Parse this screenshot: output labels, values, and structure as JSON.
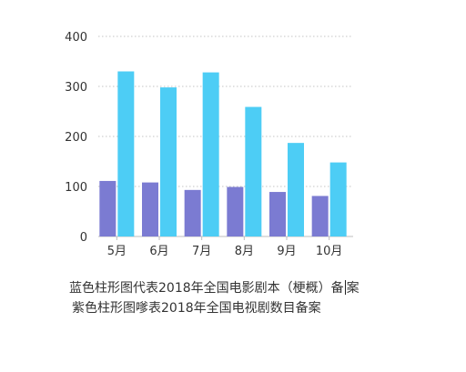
{
  "chart_data": {
    "type": "bar",
    "categories": [
      "5月",
      "6月",
      "7月",
      "8月",
      "9月",
      "10月"
    ],
    "series": [
      {
        "name": "",
        "color": "#7b7bd2",
        "values": [
          111,
          108,
          93,
          99,
          89,
          81
        ]
      },
      {
        "name": "",
        "color": "#4dcdf5",
        "values": [
          330,
          298,
          328,
          259,
          187,
          148
        ]
      }
    ],
    "yticks": [
      0,
      100,
      200,
      300,
      400
    ],
    "ylim": [
      0,
      400
    ],
    "grid": true,
    "title": "",
    "xlabel": "",
    "ylabel": ""
  },
  "captions": {
    "line1_pre": "蓝色柱形图代表2018年全国电影剧本（梗概）备",
    "line1_post": "案",
    "line2": "紫色柱形图嗲表2018年全国电视剧数目备案"
  }
}
